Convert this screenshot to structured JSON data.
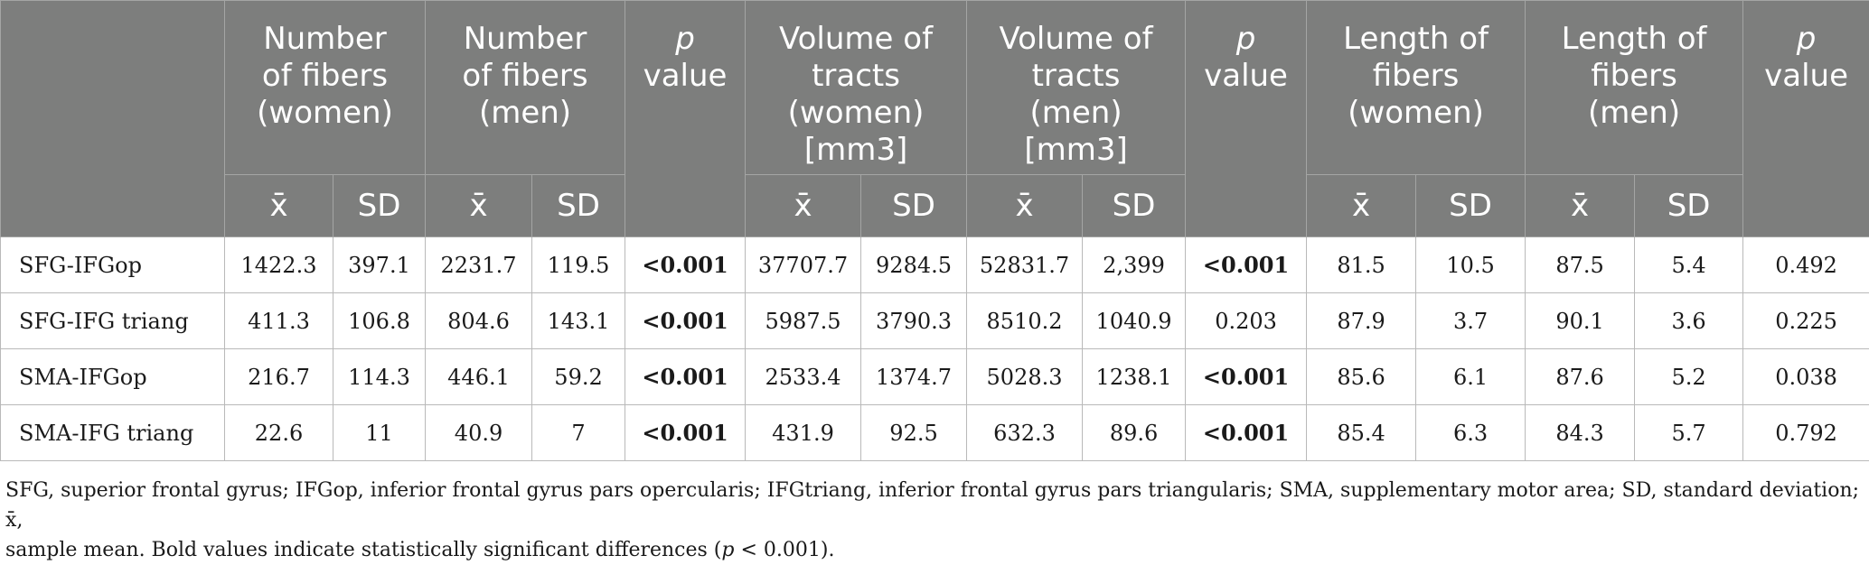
{
  "header": {
    "groups": [
      {
        "line1": "Number",
        "line2": "of fibers",
        "line3": "(women)",
        "line4": ""
      },
      {
        "line1": "Number",
        "line2": "of fibers",
        "line3": "(men)",
        "line4": ""
      },
      {
        "line1": "Volume of",
        "line2": "tracts",
        "line3": "(women)",
        "line4": "[mm3]"
      },
      {
        "line1": "Volume of",
        "line2": "tracts",
        "line3": "(men)",
        "line4": "[mm3]"
      },
      {
        "line1": "Length of",
        "line2": "fibers",
        "line3": "(women)",
        "line4": ""
      },
      {
        "line1": "Length of",
        "line2": "fibers",
        "line3": "(men)",
        "line4": ""
      }
    ],
    "pvalue": {
      "italic": "p",
      "rest": "value"
    },
    "mean_symbol": "x̄",
    "sd_label": "SD"
  },
  "rows": [
    {
      "label": "SFG-IFGop",
      "c1": "1422.3",
      "c2": "397.1",
      "c3": "2231.7",
      "c4": "119.5",
      "p1": "<0.001",
      "c5": "37707.7",
      "c6": "9284.5",
      "c7": "52831.7",
      "c8": "2,399",
      "p2": "<0.001",
      "c9": "81.5",
      "c10": "10.5",
      "c11": "87.5",
      "c12": "5.4",
      "p3": "0.492"
    },
    {
      "label": "SFG-IFG triang",
      "c1": "411.3",
      "c2": "106.8",
      "c3": "804.6",
      "c4": "143.1",
      "p1": "<0.001",
      "c5": "5987.5",
      "c6": "3790.3",
      "c7": "8510.2",
      "c8": "1040.9",
      "p2": "0.203",
      "c9": "87.9",
      "c10": "3.7",
      "c11": "90.1",
      "c12": "3.6",
      "p3": "0.225"
    },
    {
      "label": "SMA-IFGop",
      "c1": "216.7",
      "c2": "114.3",
      "c3": "446.1",
      "c4": "59.2",
      "p1": "<0.001",
      "c5": "2533.4",
      "c6": "1374.7",
      "c7": "5028.3",
      "c8": "1238.1",
      "p2": "<0.001",
      "c9": "85.6",
      "c10": "6.1",
      "c11": "87.6",
      "c12": "5.2",
      "p3": "0.038"
    },
    {
      "label": "SMA-IFG triang",
      "c1": "22.6",
      "c2": "11",
      "c3": "40.9",
      "c4": "7",
      "p1": "<0.001",
      "c5": "431.9",
      "c6": "92.5",
      "c7": "632.3",
      "c8": "89.6",
      "p2": "<0.001",
      "c9": "85.4",
      "c10": "6.3",
      "c11": "84.3",
      "c12": "5.7",
      "p3": "0.792"
    }
  ],
  "footnote": {
    "part1": "SFG, superior frontal gyrus; IFGop, inferior frontal gyrus pars opercularis; IFGtriang, inferior frontal gyrus pars triangularis; SMA, supplementary motor area; SD, standard deviation; x̄,",
    "part2": "sample mean. Bold values indicate statistically significant differences (",
    "p": "p",
    "part3": " < 0.001)."
  }
}
